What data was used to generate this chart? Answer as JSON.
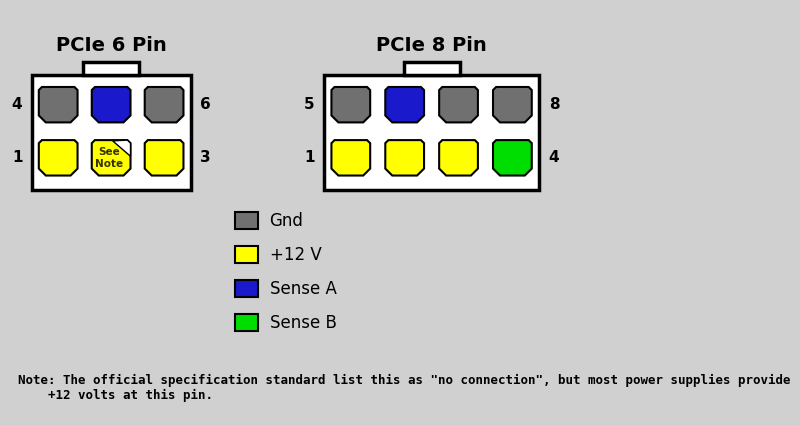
{
  "bg_color": "#d0d0d0",
  "title_6pin": "PCIe 6 Pin",
  "title_8pin": "PCIe 8 Pin",
  "title_fontsize": 14,
  "pin_colors_6pin_top": [
    "#707070",
    "#1a1acc",
    "#707070"
  ],
  "pin_colors_6pin_bottom": [
    "#ffff00",
    "see_note",
    "#ffff00"
  ],
  "pin_colors_8pin_top": [
    "#707070",
    "#1a1acc",
    "#707070",
    "#707070"
  ],
  "pin_colors_8pin_bottom": [
    "#ffff00",
    "#ffff00",
    "#ffff00",
    "#00dd00"
  ],
  "legend_items": [
    {
      "color": "#707070",
      "label": "Gnd"
    },
    {
      "color": "#ffff00",
      "label": "+12 V"
    },
    {
      "color": "#1a1acc",
      "label": "Sense A"
    },
    {
      "color": "#00dd00",
      "label": "Sense B"
    }
  ],
  "note_text": "Note: The official specification standard list this as \"no connection\", but most power supplies provide\n    +12 volts at this pin.",
  "note_fontsize": 9,
  "legend_fontsize": 12,
  "label_fontsize": 11
}
